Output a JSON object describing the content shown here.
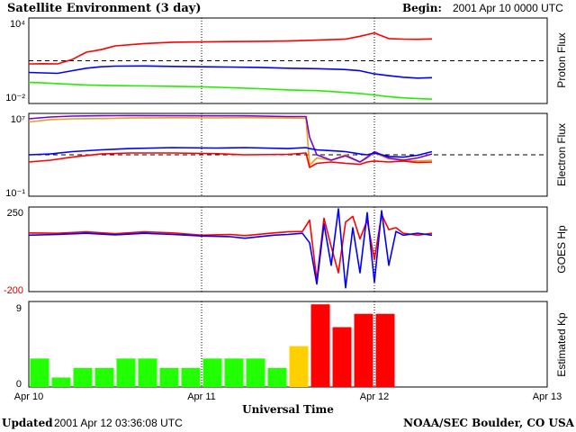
{
  "header": {
    "title": "Satellite Environment (3 day)",
    "begin_label": "Begin:",
    "begin_value": "2001 Apr 10 0000 UTC"
  },
  "footer": {
    "updated_label": "Updated",
    "updated_value": "2001 Apr 12 03:36:08 UTC",
    "credit": "NOAA/SEC Boulder, CO USA"
  },
  "colors": {
    "red": "#ff0000",
    "blue": "#0000ff",
    "green": "#22ee00",
    "purple": "#7a00cc",
    "orange": "#e8a020",
    "kp_green": "#22ff00",
    "kp_yellow": "#ffd000",
    "kp_red": "#ff0000"
  },
  "chart_data": [
    {
      "id": "proton",
      "type": "line",
      "ylabel": "Proton Flux",
      "scale": "log",
      "ylim": [
        0.01,
        10000
      ],
      "tick_labels": {
        "top": "10⁴",
        "bottom": "10⁻²"
      },
      "threshold": 10,
      "xlim": [
        0,
        72
      ],
      "series": [
        {
          "color": "red",
          "x": [
            0,
            2,
            4,
            6,
            8,
            10,
            12,
            16,
            20,
            24,
            28,
            32,
            36,
            40,
            44,
            46,
            48,
            50,
            52,
            54,
            56
          ],
          "y": [
            6,
            6.2,
            6,
            12,
            40,
            60,
            110,
            160,
            200,
            210,
            220,
            230,
            240,
            280,
            330,
            520,
            900,
            360,
            330,
            320,
            340
          ]
        },
        {
          "color": "blue",
          "x": [
            0,
            2,
            4,
            6,
            8,
            10,
            12,
            16,
            20,
            24,
            28,
            32,
            36,
            40,
            44,
            46,
            48,
            50,
            52,
            54,
            56
          ],
          "y": [
            1.5,
            1.4,
            1.3,
            2.0,
            3.0,
            3.8,
            4.2,
            4.3,
            4.0,
            3.8,
            3.6,
            3.4,
            3.0,
            2.8,
            2.4,
            2.0,
            1.2,
            0.9,
            0.7,
            0.6,
            0.65
          ]
        },
        {
          "color": "green",
          "x": [
            0,
            2,
            4,
            6,
            8,
            10,
            12,
            16,
            20,
            24,
            28,
            32,
            36,
            40,
            44,
            46,
            48,
            50,
            52,
            54,
            56
          ],
          "y": [
            0.3,
            0.28,
            0.25,
            0.22,
            0.2,
            0.19,
            0.18,
            0.17,
            0.16,
            0.15,
            0.13,
            0.11,
            0.09,
            0.08,
            0.06,
            0.05,
            0.04,
            0.03,
            0.025,
            0.022,
            0.02
          ]
        }
      ]
    },
    {
      "id": "electron",
      "type": "line",
      "ylabel": "Electron Flux",
      "scale": "log",
      "ylim": [
        0.1,
        10000000
      ],
      "tick_labels": {
        "top": "10⁷",
        "bottom": "10⁻¹"
      },
      "threshold": 1000,
      "xlim": [
        0,
        72
      ],
      "series": [
        {
          "color": "orange",
          "x": [
            0,
            3,
            6,
            10,
            14,
            20,
            26,
            30,
            36,
            38.5,
            39,
            40,
            42,
            44,
            46,
            47,
            48,
            50,
            52,
            54,
            56
          ],
          "y": [
            1500000,
            2500000,
            3000000,
            3200000,
            3600000,
            3800000,
            3700000,
            3900000,
            3600000,
            3300000,
            100,
            500,
            300,
            1000,
            200,
            500,
            1500,
            400,
            300,
            250,
            300
          ]
        },
        {
          "color": "purple",
          "x": [
            0,
            3,
            6,
            10,
            14,
            20,
            26,
            30,
            36,
            38.5,
            39,
            40,
            42,
            44,
            46,
            47,
            48,
            50,
            52,
            54,
            56
          ],
          "y": [
            3000000,
            4500000,
            5500000,
            6000000,
            6200000,
            6000000,
            5800000,
            5800000,
            5000000,
            5000000,
            50000,
            1000,
            300,
            800,
            200,
            600,
            2000,
            500,
            300,
            500,
            1200
          ]
        },
        {
          "color": "blue",
          "x": [
            0,
            3,
            6,
            10,
            14,
            20,
            26,
            30,
            36,
            38.5,
            39,
            40,
            42,
            44,
            46,
            47,
            48,
            50,
            52,
            54,
            56
          ],
          "y": [
            1000,
            1200,
            2000,
            3000,
            4000,
            5000,
            4500,
            5000,
            4000,
            5000,
            4000,
            3000,
            2500,
            2000,
            1200,
            1000,
            1500,
            700,
            600,
            900,
            2000
          ]
        },
        {
          "color": "red",
          "x": [
            0,
            3,
            6,
            10,
            14,
            20,
            26,
            30,
            36,
            38.5,
            39,
            40,
            42,
            44,
            46,
            47,
            48,
            50,
            52,
            54,
            56
          ],
          "y": [
            200,
            300,
            600,
            1200,
            1500,
            1500,
            1300,
            1000,
            1100,
            1500,
            60,
            150,
            200,
            150,
            120,
            200,
            250,
            200,
            250,
            180,
            200
          ]
        }
      ]
    },
    {
      "id": "hp",
      "type": "line",
      "ylabel": "GOES Hp",
      "scale": "linear",
      "ylim": [
        -200,
        250
      ],
      "tick_labels": {
        "top": "250",
        "bottom": "-200"
      },
      "xlim": [
        0,
        72
      ],
      "series": [
        {
          "color": "red",
          "x": [
            0,
            4,
            8,
            12,
            16,
            20,
            24,
            28,
            30,
            34,
            36,
            38,
            39,
            40,
            41,
            42,
            43,
            44,
            45,
            46,
            47,
            48,
            49,
            50,
            51,
            52,
            54,
            56
          ],
          "y": [
            112,
            110,
            118,
            108,
            118,
            112,
            100,
            104,
            98,
            112,
            118,
            120,
            180,
            -140,
            190,
            40,
            -100,
            170,
            200,
            80,
            180,
            -30,
            210,
            130,
            140,
            110,
            100,
            110
          ]
        },
        {
          "color": "blue",
          "x": [
            0,
            4,
            8,
            12,
            16,
            20,
            24,
            28,
            30,
            34,
            36,
            38,
            39,
            40,
            41,
            42,
            43,
            44,
            45,
            46,
            47,
            48,
            49,
            50,
            51,
            52,
            54,
            56
          ],
          "y": [
            100,
            104,
            110,
            102,
            110,
            104,
            96,
            92,
            84,
            100,
            104,
            110,
            60,
            -160,
            160,
            -60,
            240,
            -180,
            140,
            -100,
            220,
            -150,
            230,
            -60,
            120,
            100,
            110,
            100
          ]
        }
      ]
    },
    {
      "id": "kp",
      "type": "bar",
      "ylabel": "Estimated Kp",
      "ylim": [
        0,
        9
      ],
      "tick_labels": {
        "top": "9",
        "bottom": "0"
      },
      "xlabel": "Universal Time",
      "x_tick_labels": [
        "Apr 10",
        "Apr 11",
        "Apr 12",
        "Apr 13"
      ],
      "bin_hours": 3,
      "values": [
        3,
        1,
        2,
        2,
        3,
        3,
        2,
        2,
        3,
        3,
        3,
        2,
        4.3,
        8.7,
        6.3,
        7.7,
        7.7
      ],
      "colors": [
        "kp_green",
        "kp_green",
        "kp_green",
        "kp_green",
        "kp_green",
        "kp_green",
        "kp_green",
        "kp_green",
        "kp_green",
        "kp_green",
        "kp_green",
        "kp_green",
        "kp_yellow",
        "kp_red",
        "kp_red",
        "kp_red",
        "kp_red"
      ]
    }
  ]
}
